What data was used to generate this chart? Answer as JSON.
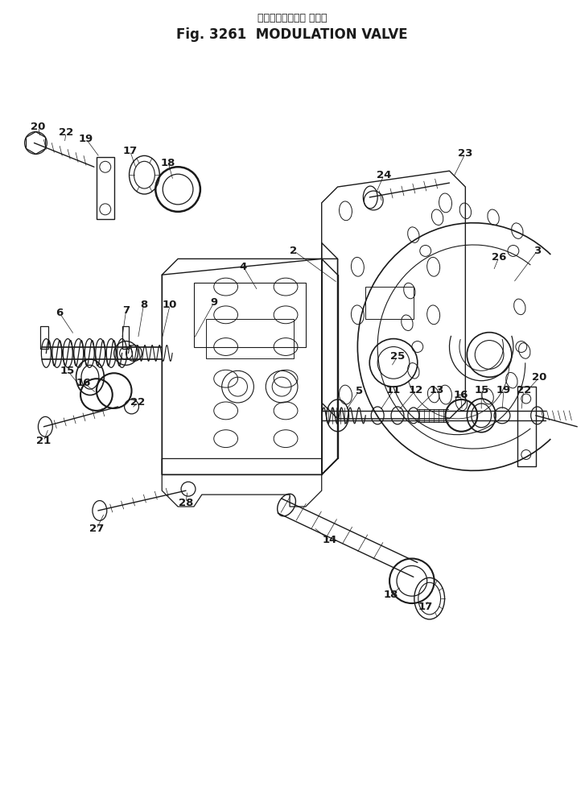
{
  "title_japanese": "モジュレーション バルブ",
  "title_english": "Fig. 3261  MODULATION VALVE",
  "bg_color": "#ffffff",
  "line_color": "#1a1a1a",
  "figsize": [
    7.27,
    9.97
  ],
  "dpi": 100
}
